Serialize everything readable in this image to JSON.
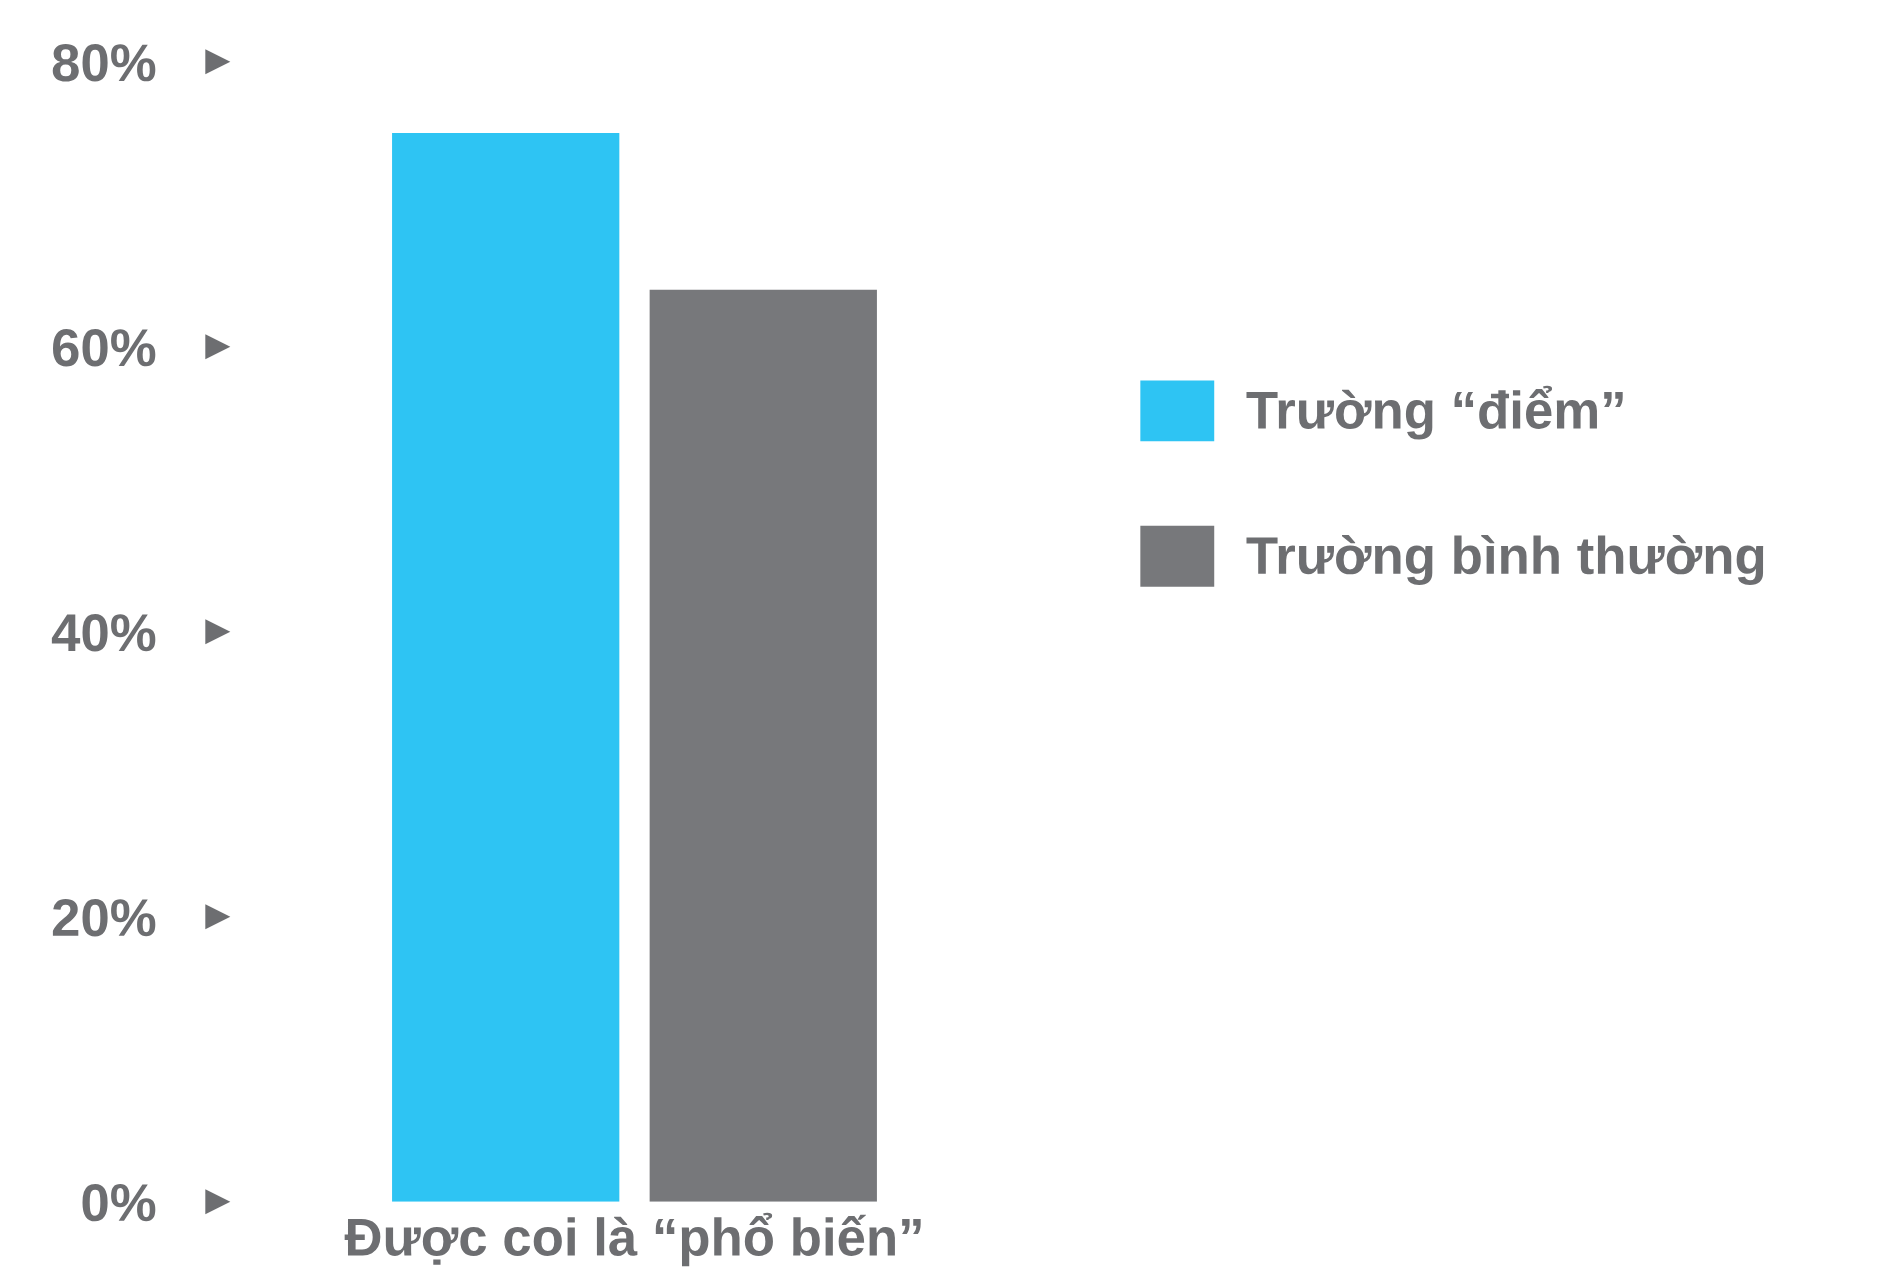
{
  "chart_data": {
    "type": "bar",
    "categories": [
      "Được coi là “phổ biến”"
    ],
    "series": [
      {
        "name": "Trường “điểm”",
        "color": "#2ec4f3",
        "values": [
          75
        ]
      },
      {
        "name": "Trường bình thường",
        "color": "#77787b",
        "values": [
          64
        ]
      }
    ],
    "ylim": [
      0,
      80
    ],
    "yticks": [
      {
        "value": 0,
        "label": "0%"
      },
      {
        "value": 20,
        "label": "20%"
      },
      {
        "value": 40,
        "label": "40%"
      },
      {
        "value": 60,
        "label": "60%"
      },
      {
        "value": 80,
        "label": "80%"
      }
    ],
    "grid": false,
    "legend": "right"
  }
}
